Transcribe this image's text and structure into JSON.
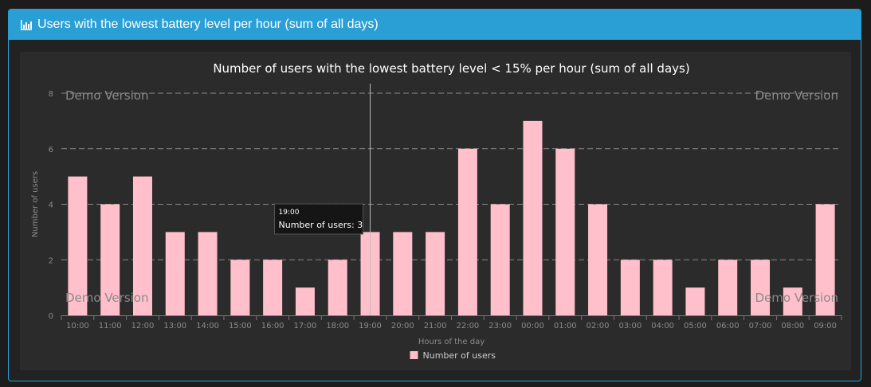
{
  "panel": {
    "title": "Users with the lowest battery level per hour (sum of all days)",
    "icon": "bar-chart-icon",
    "header_color": "#2a9fd6"
  },
  "watermark": "Demo Version",
  "tooltip": {
    "category": "19:00",
    "label": "Number of users: 3"
  },
  "chart_data": {
    "type": "bar",
    "title": "Number of users with the lowest battery level < 15% per hour (sum of all days)",
    "xlabel": "Hours of the day",
    "ylabel": "Number of users",
    "categories": [
      "10:00",
      "11:00",
      "12:00",
      "13:00",
      "14:00",
      "15:00",
      "16:00",
      "17:00",
      "18:00",
      "19:00",
      "20:00",
      "21:00",
      "22:00",
      "23:00",
      "00:00",
      "01:00",
      "02:00",
      "03:00",
      "04:00",
      "05:00",
      "06:00",
      "07:00",
      "08:00",
      "09:00"
    ],
    "series": [
      {
        "name": "Number of users",
        "color": "#ffc0cb",
        "values": [
          5,
          4,
          5,
          3,
          3,
          2,
          2,
          1,
          2,
          3,
          3,
          3,
          6,
          4,
          7,
          6,
          4,
          2,
          2,
          1,
          2,
          2,
          1,
          4
        ]
      }
    ],
    "ylim": [
      0,
      8
    ],
    "yticks": [
      0,
      2,
      4,
      6,
      8
    ],
    "grid": true,
    "legend": "bottom-center"
  }
}
